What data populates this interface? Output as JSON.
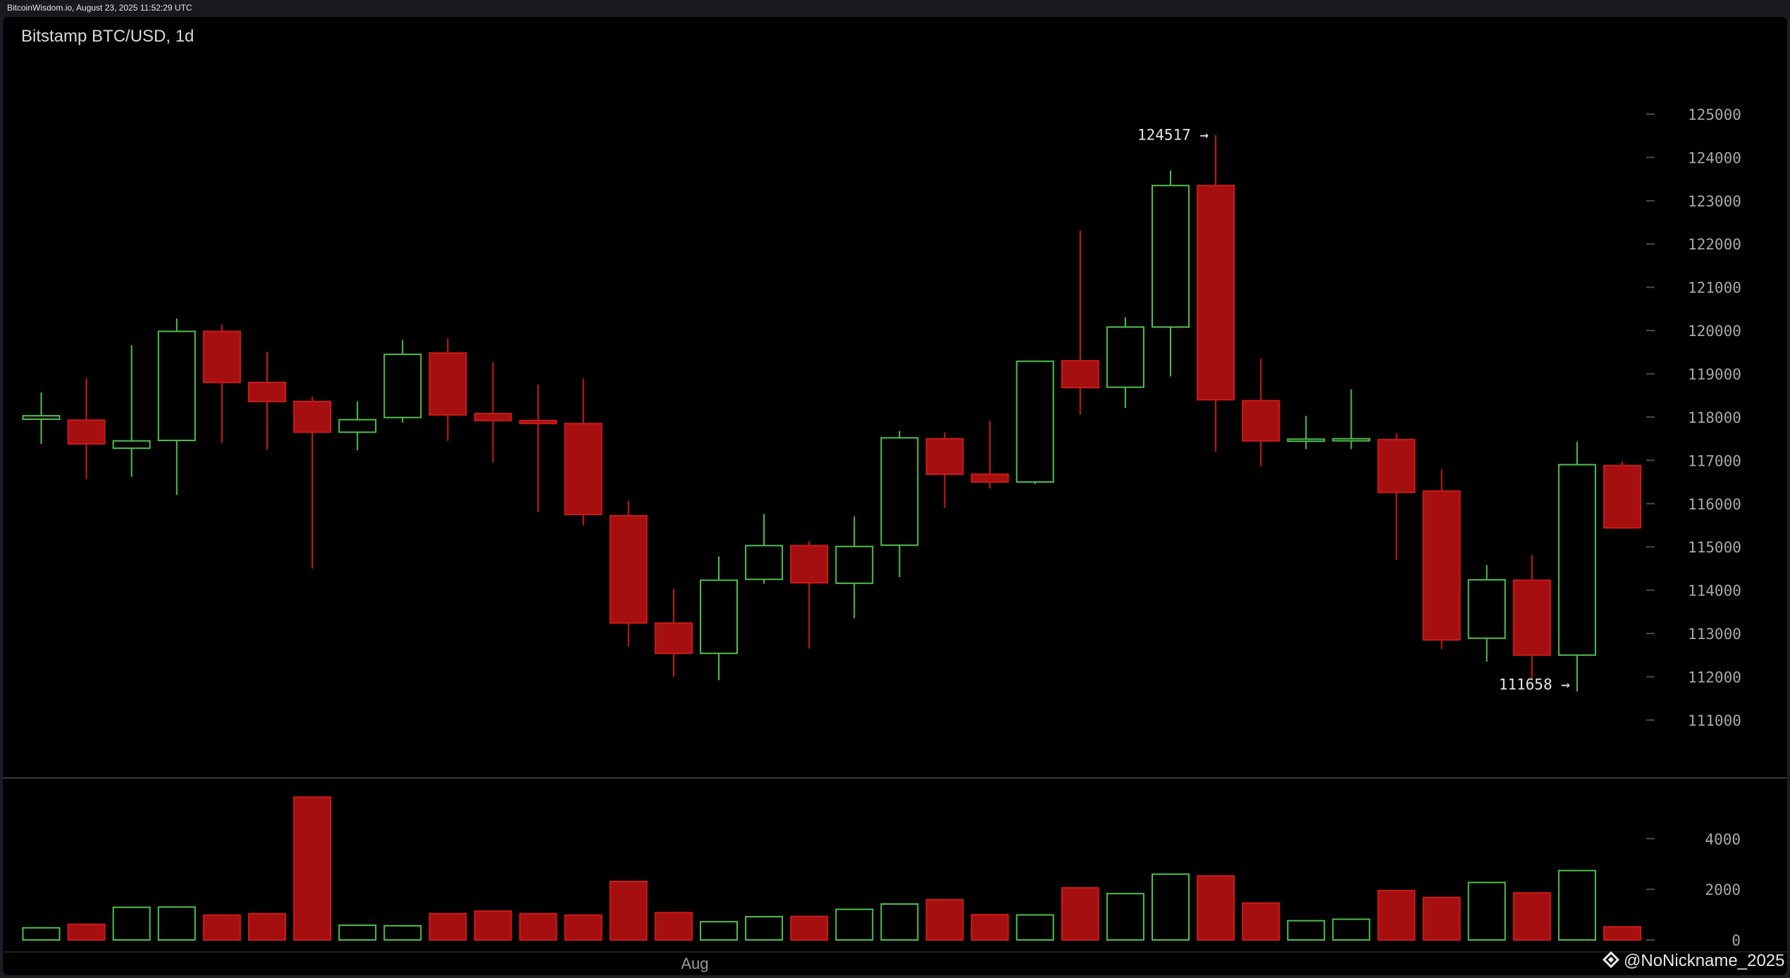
{
  "header": {
    "source_line": "BitcoinWisdom.io, August 23, 2025 11:52:29 UTC"
  },
  "watermark": "@NoNickname_2025",
  "colors": {
    "up": "#4ec04e",
    "down": "#a50f0f",
    "down_edge": "#cc1a1a",
    "background": "#000000"
  },
  "chart_data": {
    "type": "candlestick",
    "title": "Bitstamp BTC/USD, 1d",
    "x_tick_labels": [
      {
        "index": 14,
        "label": "Aug"
      }
    ],
    "price_axis": {
      "ticks": [
        111000,
        112000,
        113000,
        114000,
        115000,
        116000,
        117000,
        118000,
        119000,
        120000,
        121000,
        122000,
        123000,
        124000,
        125000
      ],
      "range": [
        110200,
        126400
      ]
    },
    "volume_axis": {
      "ticks": [
        0,
        2000,
        4000
      ],
      "range": [
        0,
        5900
      ]
    },
    "annotations": [
      {
        "index": 26,
        "value": 124517,
        "label": "124517 →",
        "position": "high"
      },
      {
        "index": 34,
        "value": 111658,
        "label": "111658 →",
        "position": "low"
      }
    ],
    "candles": [
      {
        "o": 117950,
        "h": 118570,
        "l": 117380,
        "c": 118030,
        "v": 480
      },
      {
        "o": 117930,
        "h": 118900,
        "l": 116570,
        "c": 117380,
        "v": 620
      },
      {
        "o": 117280,
        "h": 119660,
        "l": 116620,
        "c": 117450,
        "v": 1290
      },
      {
        "o": 117460,
        "h": 120280,
        "l": 116200,
        "c": 119980,
        "v": 1300
      },
      {
        "o": 119980,
        "h": 120140,
        "l": 117400,
        "c": 118800,
        "v": 980
      },
      {
        "o": 118800,
        "h": 119510,
        "l": 117240,
        "c": 118360,
        "v": 1040
      },
      {
        "o": 118360,
        "h": 118470,
        "l": 114500,
        "c": 117650,
        "v": 5640
      },
      {
        "o": 117650,
        "h": 118360,
        "l": 117230,
        "c": 117940,
        "v": 580
      },
      {
        "o": 117990,
        "h": 119780,
        "l": 117870,
        "c": 119450,
        "v": 560
      },
      {
        "o": 119480,
        "h": 119820,
        "l": 117450,
        "c": 118050,
        "v": 1040
      },
      {
        "o": 118080,
        "h": 119270,
        "l": 116950,
        "c": 117920,
        "v": 1140
      },
      {
        "o": 117920,
        "h": 118750,
        "l": 115800,
        "c": 117850,
        "v": 1040
      },
      {
        "o": 117850,
        "h": 118880,
        "l": 115500,
        "c": 115750,
        "v": 980
      },
      {
        "o": 115720,
        "h": 116070,
        "l": 112700,
        "c": 113240,
        "v": 2310
      },
      {
        "o": 113240,
        "h": 114030,
        "l": 112000,
        "c": 112540,
        "v": 1080
      },
      {
        "o": 112540,
        "h": 114780,
        "l": 111920,
        "c": 114230,
        "v": 720
      },
      {
        "o": 114250,
        "h": 115760,
        "l": 114150,
        "c": 115030,
        "v": 920
      },
      {
        "o": 115030,
        "h": 115130,
        "l": 112650,
        "c": 114170,
        "v": 930
      },
      {
        "o": 114160,
        "h": 115710,
        "l": 113350,
        "c": 115010,
        "v": 1210
      },
      {
        "o": 115040,
        "h": 117680,
        "l": 114300,
        "c": 117520,
        "v": 1420
      },
      {
        "o": 117500,
        "h": 117650,
        "l": 115900,
        "c": 116680,
        "v": 1590
      },
      {
        "o": 116680,
        "h": 117920,
        "l": 116350,
        "c": 116500,
        "v": 1000
      },
      {
        "o": 116500,
        "h": 119290,
        "l": 116450,
        "c": 119290,
        "v": 990
      },
      {
        "o": 119300,
        "h": 122310,
        "l": 118060,
        "c": 118680,
        "v": 2060
      },
      {
        "o": 118690,
        "h": 120300,
        "l": 118210,
        "c": 120080,
        "v": 1830
      },
      {
        "o": 120080,
        "h": 123700,
        "l": 118940,
        "c": 123350,
        "v": 2600
      },
      {
        "o": 123350,
        "h": 124517,
        "l": 117200,
        "c": 118400,
        "v": 2530
      },
      {
        "o": 118380,
        "h": 119350,
        "l": 116860,
        "c": 117450,
        "v": 1460
      },
      {
        "o": 117450,
        "h": 118030,
        "l": 117260,
        "c": 117490,
        "v": 760
      },
      {
        "o": 117460,
        "h": 118640,
        "l": 117260,
        "c": 117500,
        "v": 820
      },
      {
        "o": 117480,
        "h": 117620,
        "l": 114700,
        "c": 116260,
        "v": 1950
      },
      {
        "o": 116290,
        "h": 116790,
        "l": 112640,
        "c": 112850,
        "v": 1680
      },
      {
        "o": 112890,
        "h": 114580,
        "l": 112350,
        "c": 114240,
        "v": 2270
      },
      {
        "o": 114230,
        "h": 114810,
        "l": 111920,
        "c": 112500,
        "v": 1860
      },
      {
        "o": 112500,
        "h": 117430,
        "l": 111658,
        "c": 116900,
        "v": 2740
      },
      {
        "o": 116880,
        "h": 116970,
        "l": 115440,
        "c": 115440,
        "v": 520
      }
    ]
  }
}
